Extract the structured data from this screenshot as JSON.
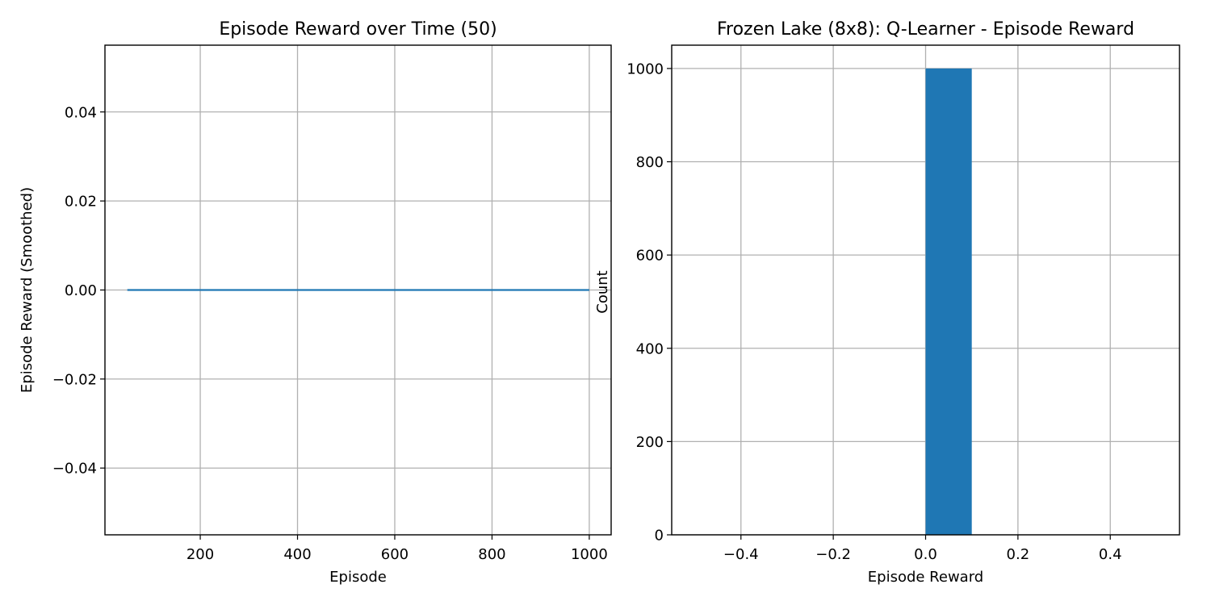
{
  "chart_data": [
    {
      "type": "line",
      "title": "Episode Reward over Time (50)",
      "xlabel": "Episode",
      "ylabel": "Episode Reward (Smoothed)",
      "xlim": [
        4,
        1045
      ],
      "ylim": [
        -0.055,
        0.055
      ],
      "xticks": [
        200,
        400,
        600,
        800,
        1000
      ],
      "xtick_labels": [
        "200",
        "400",
        "600",
        "800",
        "1000"
      ],
      "yticks": [
        -0.04,
        -0.02,
        0.0,
        0.02,
        0.04
      ],
      "ytick_labels": [
        "−0.04",
        "−0.02",
        "0.00",
        "0.02",
        "0.04"
      ],
      "grid": true,
      "series": [
        {
          "color": "#1f77b4",
          "x": [
            50,
            1000
          ],
          "y": [
            0.0,
            0.0
          ]
        }
      ]
    },
    {
      "type": "bar",
      "subtype": "histogram",
      "title": "Frozen Lake (8x8): Q-Learner - Episode Reward",
      "xlabel": "Episode Reward",
      "ylabel": "Count",
      "xlim": [
        -0.55,
        0.55
      ],
      "ylim": [
        0,
        1050
      ],
      "xticks": [
        -0.4,
        -0.2,
        0.0,
        0.2,
        0.4
      ],
      "xtick_labels": [
        "−0.4",
        "−0.2",
        "0.0",
        "0.2",
        "0.4"
      ],
      "yticks": [
        0,
        200,
        400,
        600,
        800,
        1000
      ],
      "ytick_labels": [
        "0",
        "200",
        "400",
        "600",
        "800",
        "1000"
      ],
      "grid": true,
      "bins": [
        {
          "start": -0.5,
          "end": -0.4,
          "count": 0
        },
        {
          "start": -0.4,
          "end": -0.3,
          "count": 0
        },
        {
          "start": -0.3,
          "end": -0.2,
          "count": 0
        },
        {
          "start": -0.2,
          "end": -0.1,
          "count": 0
        },
        {
          "start": -0.1,
          "end": 0.0,
          "count": 0
        },
        {
          "start": 0.0,
          "end": 0.1,
          "count": 1000
        },
        {
          "start": 0.1,
          "end": 0.2,
          "count": 0
        },
        {
          "start": 0.2,
          "end": 0.3,
          "count": 0
        },
        {
          "start": 0.3,
          "end": 0.4,
          "count": 0
        },
        {
          "start": 0.4,
          "end": 0.5,
          "count": 0
        }
      ],
      "bar_color": "#1f77b4"
    }
  ]
}
